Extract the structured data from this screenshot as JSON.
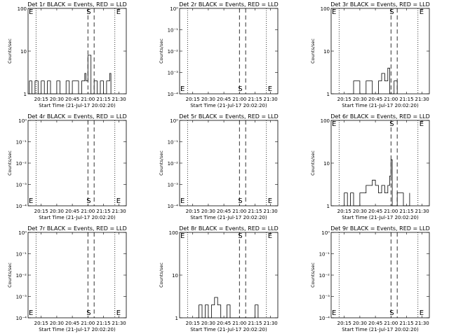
{
  "figure": {
    "x_tick_labels": [
      "20:15",
      "20:30",
      "20:45",
      "21:00",
      "21:15",
      "21:30"
    ],
    "x_axis_label": "Start Time (21-Jul-17 20:02:20)",
    "y_axis_label": "Counts/sec",
    "y_tick_labels_log": [
      "10⁻⁴",
      "10⁻³",
      "10⁻²",
      "10⁻¹",
      "10⁰"
    ],
    "y_tick_labels_lin": [
      "1",
      "10",
      "100"
    ],
    "markers": {
      "start": "E",
      "flare": "S",
      "end": "E"
    }
  },
  "chart_data": [
    {
      "type": "line",
      "title": "Det 1r BLACK = Events, RED = LLD",
      "xlabel": "Start Time (21-Jul-17 20:02:20)",
      "ylabel": "Counts/sec",
      "x_range": [
        "20:02:20",
        "21:37:00"
      ],
      "y_scale": "log",
      "ylim": [
        1,
        100
      ],
      "vertical_lines": {
        "dotted": [
          "20:10",
          "21:26"
        ],
        "dashed": [
          "21:00",
          "21:06"
        ]
      },
      "grid": false,
      "series": [
        {
          "values": [
            [
              20.05,
              1
            ],
            [
              20.06,
              2
            ],
            [
              20.1,
              1
            ],
            [
              20.15,
              2
            ],
            [
              20.2,
              1
            ],
            [
              20.25,
              2
            ],
            [
              20.3,
              1
            ],
            [
              20.35,
              2
            ],
            [
              20.4,
              1
            ],
            [
              20.45,
              1
            ],
            [
              20.5,
              2
            ],
            [
              20.55,
              1
            ],
            [
              20.6,
              1
            ],
            [
              20.65,
              2
            ],
            [
              20.7,
              1
            ],
            [
              20.75,
              2
            ],
            [
              20.8,
              2
            ],
            [
              20.85,
              1
            ],
            [
              20.9,
              2
            ],
            [
              20.95,
              3
            ],
            [
              20.97,
              2
            ],
            [
              21.0,
              8
            ],
            [
              21.05,
              1
            ],
            [
              21.1,
              2
            ],
            [
              21.15,
              1
            ],
            [
              21.2,
              2
            ],
            [
              21.25,
              1
            ],
            [
              21.3,
              2
            ],
            [
              21.35,
              3
            ],
            [
              21.37,
              1
            ]
          ]
        }
      ]
    },
    {
      "type": "line",
      "title": "Det 2r BLACK = Events, RED = LLD",
      "xlabel": "Start Time (21-Jul-17 20:02:20)",
      "ylabel": "Counts/sec",
      "x_range": [
        "20:02:20",
        "21:37:00"
      ],
      "y_scale": "log",
      "ylim": [
        0.0001,
        1
      ],
      "vertical_lines": {
        "dotted": [
          "20:10",
          "21:26"
        ],
        "dashed": [
          "21:00",
          "21:06"
        ]
      },
      "grid": false,
      "series": []
    },
    {
      "type": "line",
      "title": "Det 3r BLACK = Events, RED = LLD",
      "xlabel": "Start Time (21-Jul-17 20:02:20)",
      "ylabel": "Counts/sec",
      "x_range": [
        "20:02:20",
        "21:37:00"
      ],
      "y_scale": "log",
      "ylim": [
        1,
        100
      ],
      "vertical_lines": {
        "dotted": [
          "20:10",
          "21:26"
        ],
        "dashed": [
          "21:00",
          "21:06"
        ]
      },
      "grid": false,
      "series": [
        {
          "values": [
            [
              20.3,
              1
            ],
            [
              20.4,
              2
            ],
            [
              20.5,
              1
            ],
            [
              20.6,
              2
            ],
            [
              20.7,
              1
            ],
            [
              20.8,
              2
            ],
            [
              20.85,
              3
            ],
            [
              20.9,
              2
            ],
            [
              20.95,
              4
            ],
            [
              20.98,
              1
            ],
            [
              21.0,
              1
            ],
            [
              21.05,
              2
            ],
            [
              21.1,
              1
            ]
          ]
        }
      ]
    },
    {
      "type": "line",
      "title": "Det 4r BLACK = Events, RED = LLD",
      "xlabel": "Start Time (21-Jul-17 20:02:20)",
      "ylabel": "Counts/sec",
      "x_range": [
        "20:02:20",
        "21:37:00"
      ],
      "y_scale": "log",
      "ylim": [
        0.0001,
        1
      ],
      "vertical_lines": {
        "dotted": [
          "20:10",
          "21:26"
        ],
        "dashed": [
          "21:00",
          "21:06"
        ]
      },
      "grid": false,
      "series": []
    },
    {
      "type": "line",
      "title": "Det 5r BLACK = Events, RED = LLD",
      "xlabel": "Start Time (21-Jul-17 20:02:20)",
      "ylabel": "Counts/sec",
      "x_range": [
        "20:02:20",
        "21:37:00"
      ],
      "y_scale": "log",
      "ylim": [
        0.0001,
        1
      ],
      "vertical_lines": {
        "dotted": [
          "20:10",
          "21:26"
        ],
        "dashed": [
          "21:00",
          "21:06"
        ]
      },
      "grid": false,
      "series": []
    },
    {
      "type": "line",
      "title": "Det 6r BLACK = Events, RED = LLD",
      "xlabel": "Start Time (21-Jul-17 20:02:20)",
      "ylabel": "Counts/sec",
      "x_range": [
        "20:02:20",
        "21:37:00"
      ],
      "y_scale": "log",
      "ylim": [
        1,
        100
      ],
      "vertical_lines": {
        "dotted": [
          "20:10",
          "21:26"
        ],
        "dashed": [
          "21:00",
          "21:06"
        ]
      },
      "grid": false,
      "series": [
        {
          "values": [
            [
              20.2,
              1
            ],
            [
              20.25,
              2
            ],
            [
              20.3,
              1
            ],
            [
              20.35,
              2
            ],
            [
              20.4,
              1
            ],
            [
              20.5,
              2
            ],
            [
              20.6,
              3
            ],
            [
              20.7,
              4
            ],
            [
              20.75,
              3
            ],
            [
              20.8,
              2
            ],
            [
              20.85,
              3
            ],
            [
              20.9,
              2
            ],
            [
              20.95,
              3
            ],
            [
              20.98,
              5
            ],
            [
              21.0,
              12
            ],
            [
              21.02,
              1
            ],
            [
              21.1,
              2
            ],
            [
              21.2,
              1
            ],
            [
              21.3,
              2
            ]
          ]
        }
      ]
    },
    {
      "type": "line",
      "title": "Det 7r BLACK = Events, RED = LLD",
      "xlabel": "Start Time (21-Jul-17 20:02:20)",
      "ylabel": "Counts/sec",
      "x_range": [
        "20:02:20",
        "21:37:00"
      ],
      "y_scale": "log",
      "ylim": [
        0.0001,
        1
      ],
      "vertical_lines": {
        "dotted": [
          "20:10",
          "21:26"
        ],
        "dashed": [
          "21:00",
          "21:06"
        ]
      },
      "grid": false,
      "series": []
    },
    {
      "type": "line",
      "title": "Det 8r BLACK = Events, RED = LLD",
      "xlabel": "Start Time (21-Jul-17 20:02:20)",
      "ylabel": "Counts/sec",
      "x_range": [
        "20:02:20",
        "21:37:00"
      ],
      "y_scale": "log",
      "ylim": [
        1,
        100
      ],
      "vertical_lines": {
        "dotted": [
          "20:10",
          "21:26"
        ],
        "dashed": [
          "21:00",
          "21:06"
        ]
      },
      "grid": false,
      "series": [
        {
          "values": [
            [
              20.3,
              1
            ],
            [
              20.35,
              2
            ],
            [
              20.4,
              1
            ],
            [
              20.45,
              2
            ],
            [
              20.5,
              1
            ],
            [
              20.55,
              2
            ],
            [
              20.6,
              3
            ],
            [
              20.65,
              2
            ],
            [
              20.7,
              1
            ],
            [
              20.8,
              2
            ],
            [
              20.85,
              1
            ],
            [
              21.25,
              2
            ],
            [
              21.3,
              1
            ]
          ]
        }
      ]
    },
    {
      "type": "line",
      "title": "Det 9r BLACK = Events, RED = LLD",
      "xlabel": "Start Time (21-Jul-17 20:02:20)",
      "ylabel": "Counts/sec",
      "x_range": [
        "20:02:20",
        "21:37:00"
      ],
      "y_scale": "log",
      "ylim": [
        0.0001,
        1
      ],
      "vertical_lines": {
        "dotted": [
          "20:10",
          "21:26"
        ],
        "dashed": [
          "21:00",
          "21:06"
        ]
      },
      "grid": false,
      "series": []
    }
  ]
}
